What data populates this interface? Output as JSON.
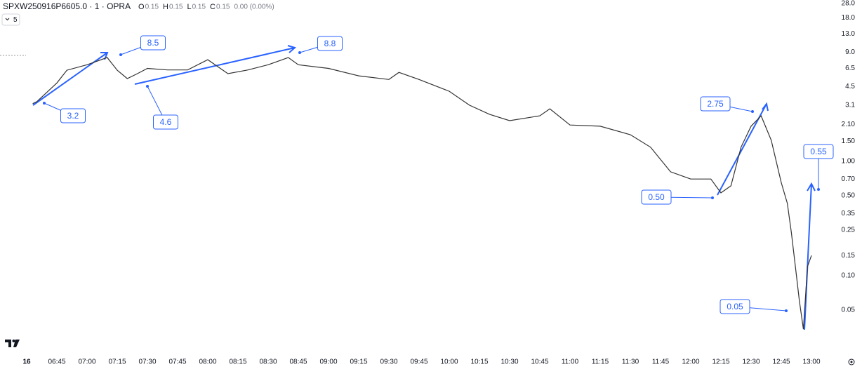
{
  "header": {
    "symbol": "SPXW250916P6605.0 · 1 · OPRA",
    "ohlc": [
      {
        "key": "O",
        "value": "0.15"
      },
      {
        "key": "H",
        "value": "0.15"
      },
      {
        "key": "L",
        "value": "0.15"
      },
      {
        "key": "C",
        "value": "0.15"
      }
    ],
    "change": "0.00 (0.00%)",
    "interval": "5"
  },
  "chart_data": {
    "type": "line",
    "log_scale": true,
    "color": "#333333",
    "x": [
      "06:33",
      "06:35",
      "06:45",
      "06:50",
      "07:00",
      "07:10",
      "07:15",
      "07:20",
      "07:25",
      "07:30",
      "07:40",
      "07:50",
      "08:00",
      "08:10",
      "08:20",
      "08:30",
      "08:40",
      "08:45",
      "09:00",
      "09:15",
      "09:30",
      "09:35",
      "09:45",
      "10:00",
      "10:10",
      "10:20",
      "10:30",
      "10:45",
      "10:50",
      "11:00",
      "11:15",
      "11:30",
      "11:40",
      "11:50",
      "12:00",
      "12:10",
      "12:15",
      "12:20",
      "12:25",
      "12:30",
      "12:35",
      "12:40",
      "12:45",
      "12:48",
      "12:50",
      "12:52",
      "12:54",
      "12:56",
      "12:58",
      "13:00"
    ],
    "values": [
      3.2,
      3.32,
      4.85,
      6.27,
      7.0,
      8.1,
      6.27,
      5.3,
      5.85,
      6.5,
      6.3,
      6.3,
      7.75,
      5.85,
      6.3,
      7.0,
      8.1,
      7.0,
      6.5,
      5.6,
      5.2,
      6.0,
      5.2,
      4.1,
      3.1,
      2.58,
      2.27,
      2.5,
      2.88,
      2.08,
      2.03,
      1.71,
      1.33,
      0.81,
      0.7,
      0.7,
      0.53,
      0.61,
      1.33,
      2.03,
      2.5,
      1.53,
      0.65,
      0.43,
      0.24,
      0.12,
      0.06,
      0.034,
      0.12,
      0.15
    ],
    "ylim": [
      0.022,
      25.8
    ],
    "yticks": [
      {
        "value": 28,
        "label": "28.0"
      },
      {
        "value": 18,
        "label": "18.0"
      },
      {
        "value": 13,
        "label": "13.0"
      },
      {
        "value": 9,
        "label": "9.0"
      },
      6.5,
      4.5,
      3.1,
      {
        "value": 2.1,
        "label": "2.10"
      },
      {
        "value": 1.5,
        "label": "1.50"
      },
      {
        "value": 1,
        "label": "1.00"
      },
      {
        "value": 0.7,
        "label": "0.70"
      },
      {
        "value": 0.5,
        "label": "0.50"
      },
      0.35,
      0.25,
      0.15,
      {
        "value": 0.1,
        "label": "0.10"
      },
      0.05
    ],
    "xticks": [
      "16",
      "06:45",
      "07:00",
      "07:15",
      "07:30",
      "07:45",
      "08:00",
      "08:15",
      "08:30",
      "08:45",
      "09:00",
      "09:15",
      "09:30",
      "09:45",
      "10:00",
      "10:15",
      "10:30",
      "10:45",
      "11:00",
      "11:15",
      "11:30",
      "11:45",
      "12:00",
      "12:15",
      "12:30",
      "12:45",
      "13:00"
    ],
    "annotations": [
      "3.2",
      "8.5",
      "4.6",
      "8.8",
      "2.75",
      "0.50",
      "0.55",
      "0.05"
    ]
  }
}
